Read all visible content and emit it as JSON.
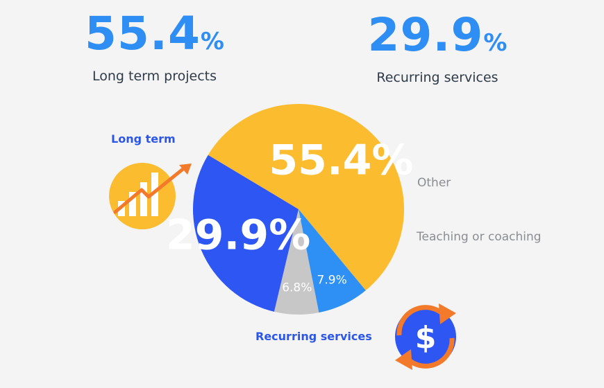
{
  "headline_stats": [
    {
      "value": "55.4",
      "unit": "%",
      "label": "Long term projects",
      "color": "#2f8ef3"
    },
    {
      "value": "29.9",
      "unit": "%",
      "label": "Recurring services",
      "color": "#2f8ef3"
    }
  ],
  "callouts": {
    "long_term": {
      "label": "Long term",
      "icon": "growth-chart-icon",
      "color": "#2b56e8"
    },
    "recurring": {
      "label": "Recurring services",
      "icon": "dollar-cycle-icon",
      "color": "#2b56e8"
    }
  },
  "side_labels": {
    "other": "Other",
    "teaching": "Teaching or coaching"
  },
  "chart_data": {
    "type": "pie",
    "slices": [
      {
        "name": "Long term projects",
        "value": 55.4,
        "label": "55.4%",
        "color": "#fbbc2f"
      },
      {
        "name": "Other",
        "value": 7.9,
        "label": "7.9%",
        "color": "#2e8ff5"
      },
      {
        "name": "Teaching or coaching",
        "value": 6.8,
        "label": "6.8%",
        "color": "#c7c7c7"
      },
      {
        "name": "Recurring services",
        "value": 29.9,
        "label": "29.9%",
        "color": "#2e56f3"
      }
    ]
  }
}
